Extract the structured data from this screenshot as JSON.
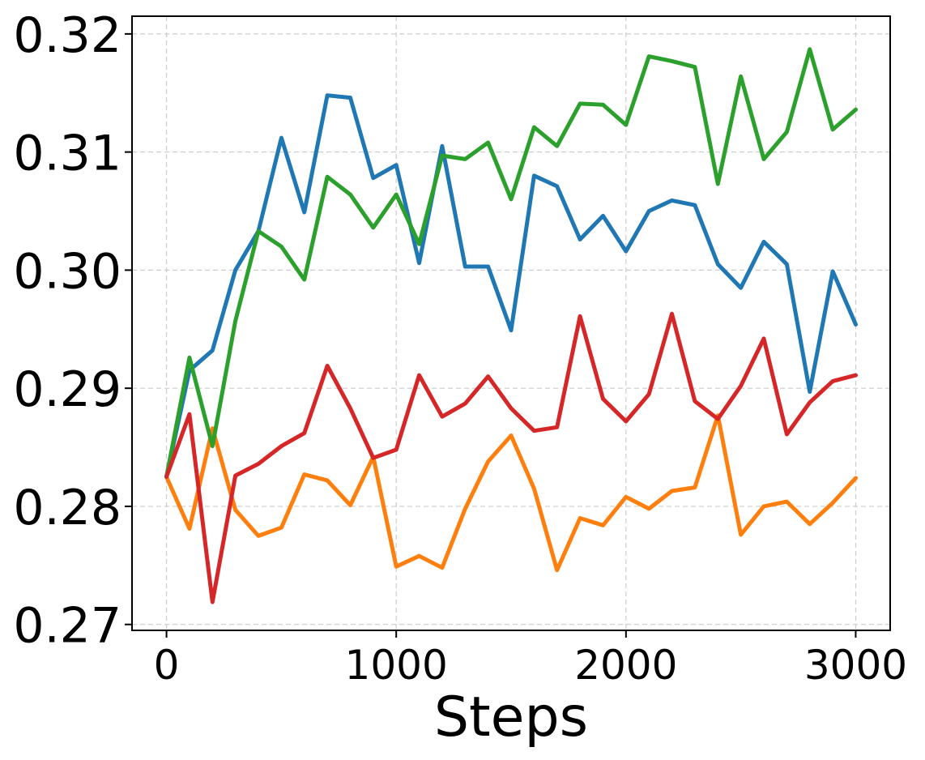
{
  "chart_data": {
    "type": "line",
    "title": "",
    "xlabel": "Steps",
    "ylabel": "",
    "xlim": [
      -150,
      3150
    ],
    "ylim": [
      0.2695,
      0.3215
    ],
    "xticks": [
      0,
      1000,
      2000,
      3000
    ],
    "xtick_labels": [
      "0",
      "1000",
      "2000",
      "3000"
    ],
    "yticks": [
      0.27,
      0.28,
      0.29,
      0.3,
      0.31,
      0.32
    ],
    "ytick_labels": [
      "0.27",
      "0.28",
      "0.29",
      "0.30",
      "0.31",
      "0.32"
    ],
    "grid": true,
    "x": [
      0,
      100,
      200,
      300,
      400,
      500,
      600,
      700,
      800,
      900,
      1000,
      1100,
      1200,
      1300,
      1400,
      1500,
      1600,
      1700,
      1800,
      1900,
      2000,
      2100,
      2200,
      2300,
      2400,
      2500,
      2600,
      2700,
      2800,
      2900,
      3000
    ],
    "series": [
      {
        "color": "#1f77b4",
        "values": [
          0.2825,
          0.2915,
          0.2932,
          0.3,
          0.3033,
          0.3112,
          0.3049,
          0.3148,
          0.3146,
          0.3078,
          0.3089,
          0.3006,
          0.3105,
          0.3003,
          0.3003,
          0.2949,
          0.308,
          0.3071,
          0.3026,
          0.3046,
          0.3016,
          0.305,
          0.3059,
          0.3055,
          0.3005,
          0.2985,
          0.3024,
          0.3005,
          0.2897,
          0.2999,
          0.2954
        ]
      },
      {
        "color": "#ff7f0e",
        "values": [
          0.2825,
          0.2781,
          0.2866,
          0.2797,
          0.2775,
          0.2782,
          0.2827,
          0.2822,
          0.2801,
          0.2842,
          0.2749,
          0.2758,
          0.2748,
          0.2798,
          0.2838,
          0.286,
          0.2815,
          0.2746,
          0.279,
          0.2784,
          0.2808,
          0.2798,
          0.2813,
          0.2816,
          0.2877,
          0.2776,
          0.28,
          0.2804,
          0.2785,
          0.2803,
          0.2824
        ]
      },
      {
        "color": "#2ca02c",
        "values": [
          0.2825,
          0.2926,
          0.2851,
          0.2957,
          0.3033,
          0.302,
          0.2992,
          0.3079,
          0.3064,
          0.3036,
          0.3064,
          0.3022,
          0.3097,
          0.3094,
          0.3108,
          0.306,
          0.3121,
          0.3105,
          0.3141,
          0.314,
          0.3123,
          0.3181,
          0.3177,
          0.3172,
          0.3073,
          0.3164,
          0.3094,
          0.3117,
          0.3187,
          0.3119,
          0.3136
        ]
      },
      {
        "color": "#d62728",
        "values": [
          0.2825,
          0.2878,
          0.2719,
          0.2826,
          0.2836,
          0.2851,
          0.2862,
          0.2919,
          0.2883,
          0.2841,
          0.2848,
          0.2911,
          0.2876,
          0.2887,
          0.291,
          0.2883,
          0.2864,
          0.2867,
          0.2961,
          0.2891,
          0.2872,
          0.2895,
          0.2963,
          0.2889,
          0.2874,
          0.2902,
          0.2942,
          0.2861,
          0.2888,
          0.2906,
          0.2911
        ]
      }
    ]
  }
}
